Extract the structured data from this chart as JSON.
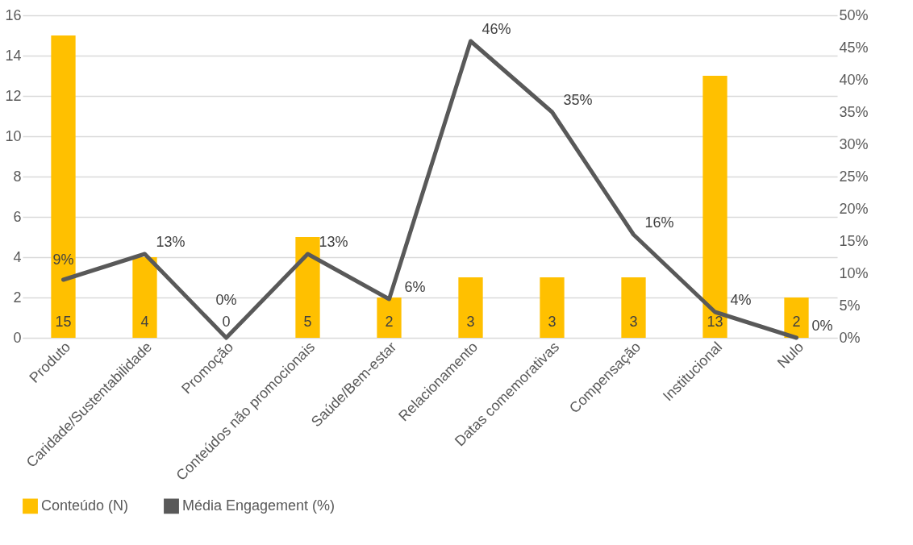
{
  "chart_data": {
    "type": "bar",
    "categories": [
      "Produto",
      "Caridade/Sustentabilidade",
      "Promoção",
      "Conteúdos não promocionais",
      "Saúde/Bem-estar",
      "Relacionamento",
      "Datas comemorativas",
      "Compensação",
      "Institucional",
      "Nulo"
    ],
    "series": [
      {
        "name": "Conteúdo (N)",
        "color": "#ffc000",
        "values": [
          15,
          4,
          0,
          5,
          2,
          3,
          3,
          3,
          13,
          2
        ],
        "value_labels": [
          "15",
          "4",
          "0",
          "5",
          "2",
          "3",
          "3",
          "3",
          "13",
          "2"
        ]
      },
      {
        "name": "Média Engagement (%)",
        "type": "line",
        "axis": "y2",
        "color": "#595959",
        "values": [
          9,
          13,
          0,
          13,
          6,
          46,
          35,
          16,
          4,
          0
        ],
        "value_labels": [
          "9%",
          "13%",
          "0%",
          "13%",
          "6%",
          "46%",
          "35%",
          "16%",
          "4%",
          "0%"
        ]
      }
    ],
    "ylim": [
      0,
      16
    ],
    "yticks": [
      0,
      2,
      4,
      6,
      8,
      10,
      12,
      14,
      16
    ],
    "y2lim": [
      0,
      50
    ],
    "y2ticks": [
      {
        "value": 0,
        "label": "0%"
      },
      {
        "value": 5,
        "label": "5%"
      },
      {
        "value": 10,
        "label": "10%"
      },
      {
        "value": 15,
        "label": "15%"
      },
      {
        "value": 20,
        "label": "20%"
      },
      {
        "value": 25,
        "label": "25%"
      },
      {
        "value": 30,
        "label": "30%"
      },
      {
        "value": 35,
        "label": "35%"
      },
      {
        "value": 40,
        "label": "40%"
      },
      {
        "value": 45,
        "label": "45%"
      },
      {
        "value": 50,
        "label": "50%"
      }
    ],
    "grid": "y",
    "legend": "bottom",
    "marker": "none",
    "line_style": "solid"
  }
}
